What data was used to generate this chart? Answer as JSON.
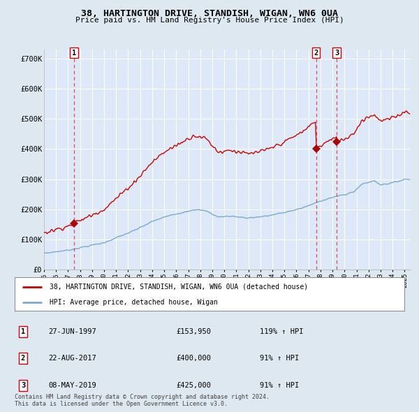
{
  "title": "38, HARTINGTON DRIVE, STANDISH, WIGAN, WN6 0UA",
  "subtitle": "Price paid vs. HM Land Registry's House Price Index (HPI)",
  "ylabel_ticks": [
    "£0",
    "£100K",
    "£200K",
    "£300K",
    "£400K",
    "£500K",
    "£600K",
    "£700K"
  ],
  "ytick_values": [
    0,
    100000,
    200000,
    300000,
    400000,
    500000,
    600000,
    700000
  ],
  "ylim": [
    0,
    730000
  ],
  "xlim_start": 1995.0,
  "xlim_end": 2025.5,
  "background_color": "#dde8f0",
  "plot_bg_color": "#dde8f8",
  "grid_color": "#ffffff",
  "red_line_color": "#cc0000",
  "blue_line_color": "#7aaad0",
  "dashed_vline_color": "#dd3333",
  "marker_color": "#aa0000",
  "sale_points": [
    {
      "date": 1997.49,
      "price": 153950,
      "label": "1"
    },
    {
      "date": 2017.64,
      "price": 400000,
      "label": "2"
    },
    {
      "date": 2019.35,
      "price": 425000,
      "label": "3"
    }
  ],
  "annotations": [
    {
      "label": "1",
      "date_str": "27-JUN-1997",
      "price": "£153,950",
      "hpi": "119% ↑ HPI"
    },
    {
      "label": "2",
      "date_str": "22-AUG-2017",
      "price": "£400,000",
      "hpi": "91% ↑ HPI"
    },
    {
      "label": "3",
      "date_str": "08-MAY-2019",
      "price": "£425,000",
      "hpi": "91% ↑ HPI"
    }
  ],
  "legend_red_label": "38, HARTINGTON DRIVE, STANDISH, WIGAN, WN6 0UA (detached house)",
  "legend_blue_label": "HPI: Average price, detached house, Wigan",
  "footer": "Contains HM Land Registry data © Crown copyright and database right 2024.\nThis data is licensed under the Open Government Licence v3.0.",
  "xtick_years": [
    1995,
    1996,
    1997,
    1998,
    1999,
    2000,
    2001,
    2002,
    2003,
    2004,
    2005,
    2006,
    2007,
    2008,
    2009,
    2010,
    2011,
    2012,
    2013,
    2014,
    2015,
    2016,
    2017,
    2018,
    2019,
    2020,
    2021,
    2022,
    2023,
    2024,
    2025
  ]
}
